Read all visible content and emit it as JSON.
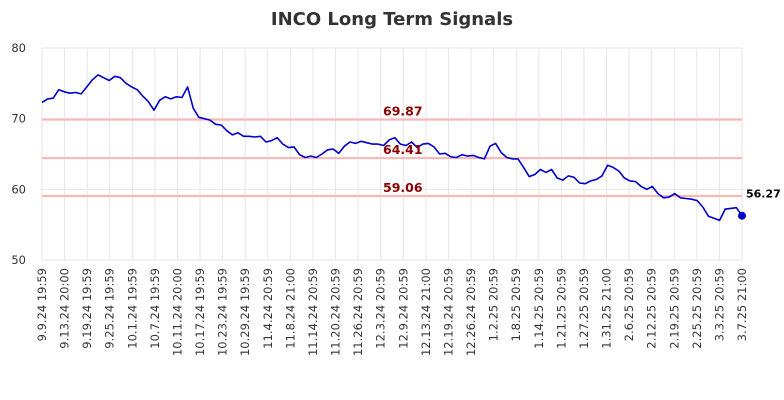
{
  "chart_data": {
    "type": "line",
    "title": "INCO Long Term Signals",
    "xlabel": "",
    "ylabel": "",
    "ylim": [
      50,
      80
    ],
    "y_ticks": [
      50,
      60,
      70,
      80
    ],
    "grid": true,
    "x_tick_labels": [
      "9.9.24 19:59",
      "9.13.24 20:00",
      "9.19.24 19:59",
      "9.25.24 19:59",
      "10.1.24 19:59",
      "10.7.24 19:59",
      "10.11.24 20:00",
      "10.17.24 19:59",
      "10.23.24 19:59",
      "10.29.24 19:59",
      "11.4.24 20:59",
      "11.8.24 21:00",
      "11.14.24 20:59",
      "11.20.24 20:59",
      "11.26.24 20:59",
      "12.3.24 20:59",
      "12.9.24 20:59",
      "12.13.24 21:00",
      "12.19.24 20:59",
      "12.26.24 20:59",
      "1.2.25 20:59",
      "1.8.25 20:59",
      "1.14.25 20:59",
      "1.21.25 20:59",
      "1.27.25 20:59",
      "1.31.25 21:00",
      "2.6.25 20:59",
      "2.12.25 20:59",
      "2.19.25 20:59",
      "2.25.25 20:59",
      "3.3.25 20:59",
      "3.7.25 21:00"
    ],
    "series": [
      {
        "values": [
          72.3,
          72.8,
          72.9,
          74.1,
          73.8,
          73.6,
          73.7,
          73.5,
          74.5,
          75.5,
          76.2,
          75.8,
          75.4,
          76.0,
          75.8,
          75.0,
          74.5,
          74.1,
          73.2,
          72.4,
          71.2,
          72.6,
          73.1,
          72.8,
          73.1,
          73.0,
          74.5,
          71.5,
          70.2,
          70.0,
          69.8,
          69.2,
          69.1,
          68.3,
          67.7,
          68.0,
          67.5,
          67.5,
          67.4,
          67.5,
          66.7,
          66.9,
          67.3,
          66.4,
          65.9,
          66.0,
          64.9,
          64.5,
          64.7,
          64.5,
          65.0,
          65.6,
          65.7,
          65.1,
          66.1,
          66.7,
          66.5,
          66.8,
          66.6,
          66.4,
          66.4,
          66.2,
          67.0,
          67.3,
          66.4,
          66.2,
          66.7,
          65.9,
          66.4,
          66.5,
          66.0,
          65.0,
          65.1,
          64.6,
          64.5,
          64.9,
          64.7,
          64.8,
          64.5,
          64.3,
          66.1,
          66.5,
          65.2,
          64.5,
          64.3,
          64.3,
          63.1,
          61.8,
          62.1,
          62.8,
          62.4,
          62.8,
          61.6,
          61.3,
          61.9,
          61.7,
          60.9,
          60.8,
          61.2,
          61.4,
          61.9,
          63.4,
          63.1,
          62.6,
          61.6,
          61.2,
          61.1,
          60.4,
          60.0,
          60.4,
          59.4,
          58.8,
          58.9,
          59.4,
          58.8,
          58.7,
          58.6,
          58.4,
          57.5,
          56.2,
          55.9,
          55.6,
          57.2,
          57.3,
          57.4,
          56.27
        ]
      }
    ],
    "horizontal_lines": [
      {
        "value": 69.87,
        "label": "69.87"
      },
      {
        "value": 64.41,
        "label": "64.41"
      },
      {
        "value": 59.06,
        "label": "59.06"
      }
    ],
    "last_value": {
      "value": 56.27,
      "label": "56.27"
    },
    "colors": {
      "line": "#0000cc",
      "hline": "#ffb3b3",
      "hline_label": "#8b0000",
      "grid": "#e6e6e6",
      "title": "#333333"
    }
  }
}
